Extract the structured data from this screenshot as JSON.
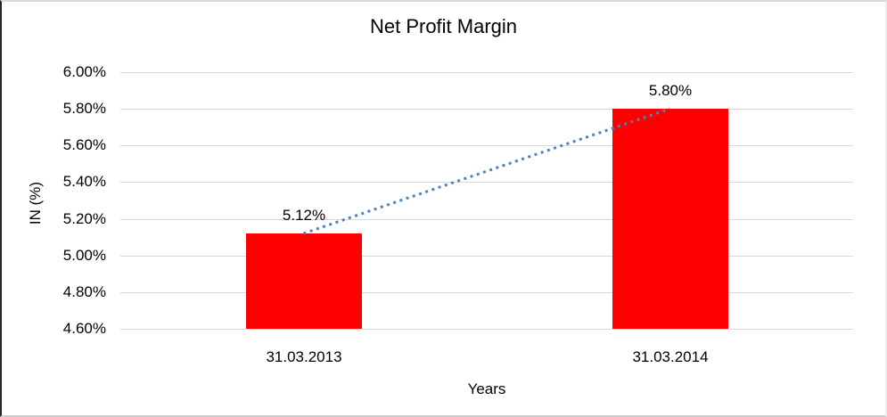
{
  "chart_data": {
    "type": "bar",
    "title": "Net Profit Margin",
    "xlabel": "Years",
    "ylabel": "IN (%)",
    "categories": [
      "31.03.2013",
      "31.03.2014"
    ],
    "values": [
      5.12,
      5.8
    ],
    "data_labels": [
      "5.12%",
      "5.80%"
    ],
    "series": [
      {
        "name": "Net Profit Margin",
        "values": [
          5.12,
          5.8
        ]
      }
    ],
    "ylim": [
      4.6,
      6.0
    ],
    "ytick_step": 0.2,
    "yticks": [
      {
        "value": 6.0,
        "label": "6.00%"
      },
      {
        "value": 5.8,
        "label": "5.80%"
      },
      {
        "value": 5.6,
        "label": "5.60%"
      },
      {
        "value": 5.4,
        "label": "5.40%"
      },
      {
        "value": 5.2,
        "label": "5.20%"
      },
      {
        "value": 5.0,
        "label": "5.00%"
      },
      {
        "value": 4.8,
        "label": "4.80%"
      },
      {
        "value": 4.6,
        "label": "4.60%"
      }
    ],
    "grid": "horizontal",
    "legend": "none",
    "bar_color": "#FF0000",
    "gridline_color": "#D9D9D9",
    "text_color": "#000000",
    "trendline": {
      "type": "linear",
      "style": "dotted",
      "color": "#4F81BD",
      "from_value": 5.12,
      "to_value": 5.8
    }
  }
}
